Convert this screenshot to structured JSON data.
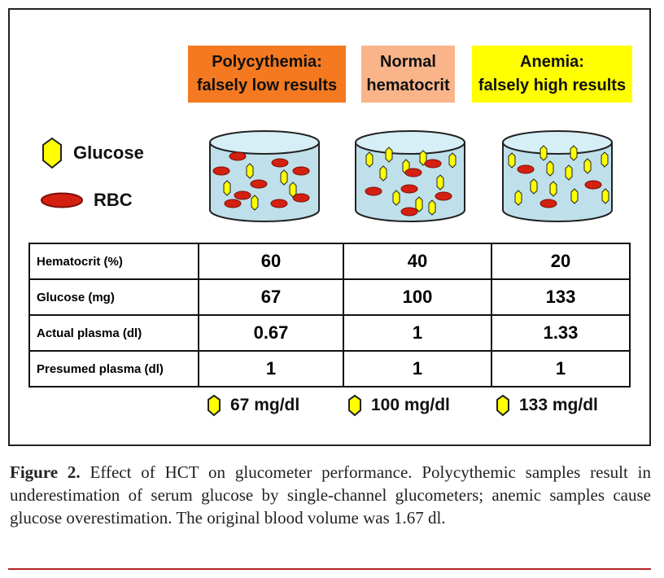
{
  "columns": [
    {
      "title_line1": "Polycythemia:",
      "title_line2": "falsely low results",
      "color": "#f47920",
      "result": "67 mg/dl"
    },
    {
      "title_line1": "Normal",
      "title_line2": "hematocrit",
      "color": "#f9b48a",
      "result": "100 mg/dl"
    },
    {
      "title_line1": "Anemia:",
      "title_line2": "falsely high results",
      "color": "#ffff00",
      "result": "133 mg/dl"
    }
  ],
  "legend": {
    "glucose": "Glucose",
    "rbc": "RBC"
  },
  "colors": {
    "glucose": "#ffff00",
    "rbc": "#d42010",
    "cylinder": "#bfe0ea"
  },
  "table": {
    "rows": [
      {
        "label": "Hematocrit (%)",
        "values": [
          "60",
          "40",
          "20"
        ]
      },
      {
        "label": "Glucose (mg)",
        "values": [
          "67",
          "100",
          "133"
        ]
      },
      {
        "label": "Actual plasma (dl)",
        "values": [
          "0.67",
          "1",
          "1.33"
        ]
      },
      {
        "label": "Presumed plasma (dl)",
        "values": [
          "1",
          "1",
          "1"
        ]
      }
    ]
  },
  "caption": {
    "label": "Figure 2.",
    "text": "Effect of HCT on glucometer performance. Polycythemic samples result in underestimation of serum glucose by single-channel glucometers; anemic samples cause glucose overestimation. The original blood volume was 1.67 dl."
  }
}
